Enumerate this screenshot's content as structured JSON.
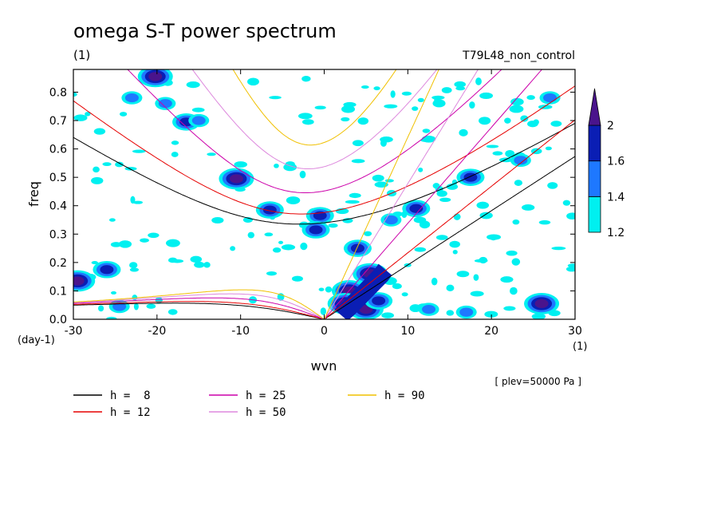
{
  "chart_data": {
    "type": "heatmap",
    "title": "omega S-T power spectrum",
    "subtitle_left": "(1)",
    "subtitle_right": "T79L48_non_control",
    "xlabel": "wvn",
    "ylabel": "freq",
    "x_unit": "(1)",
    "y_unit": "(day-1)",
    "plev_note": "[ plev=50000 Pa ]",
    "xlim": [
      -30,
      30
    ],
    "ylim": [
      0.0,
      0.88
    ],
    "xticks": [
      -30,
      -20,
      -10,
      0,
      10,
      20,
      30
    ],
    "yticks": [
      0.0,
      0.1,
      0.2,
      0.3,
      0.4,
      0.5,
      0.6,
      0.7,
      0.8
    ],
    "colorbar": {
      "levels": [
        1.2,
        1.4,
        1.6,
        2
      ],
      "colors": [
        "#00f0f0",
        "#1e78ff",
        "#0a1eb4",
        "#4a148c"
      ],
      "has_extend_arrow": true
    },
    "dispersion_curves": [
      {
        "label": "h =  8",
        "h": 8,
        "color": "#000000"
      },
      {
        "label": "h = 12",
        "h": 12,
        "color": "#e60000"
      },
      {
        "label": "h = 25",
        "h": 25,
        "color": "#cc00aa"
      },
      {
        "label": "h = 50",
        "h": 50,
        "color": "#dd88dd"
      },
      {
        "label": "h = 90",
        "h": 90,
        "color": "#f0c000"
      }
    ],
    "power_blobs": [
      {
        "x": -20.2,
        "y": 0.855,
        "level": 3
      },
      {
        "x": -16.5,
        "y": 0.695,
        "level": 2
      },
      {
        "x": -15.0,
        "y": 0.7,
        "level": 1
      },
      {
        "x": -23.0,
        "y": 0.78,
        "level": 1
      },
      {
        "x": -19.0,
        "y": 0.76,
        "level": 1
      },
      {
        "x": -10.5,
        "y": 0.495,
        "level": 3
      },
      {
        "x": -26.0,
        "y": 0.175,
        "level": 2
      },
      {
        "x": -29.5,
        "y": 0.135,
        "level": 3
      },
      {
        "x": -0.5,
        "y": 0.365,
        "level": 2
      },
      {
        "x": -1.0,
        "y": 0.315,
        "level": 2
      },
      {
        "x": -6.5,
        "y": 0.385,
        "level": 2
      },
      {
        "x": 11.0,
        "y": 0.39,
        "level": 2
      },
      {
        "x": 8.0,
        "y": 0.35,
        "level": 1
      },
      {
        "x": 5.5,
        "y": 0.16,
        "level": 3
      },
      {
        "x": 4.0,
        "y": 0.25,
        "level": 2
      },
      {
        "x": 3.0,
        "y": 0.1,
        "level": 3
      },
      {
        "x": 2.5,
        "y": 0.055,
        "level": 3
      },
      {
        "x": 5.0,
        "y": 0.035,
        "level": 3
      },
      {
        "x": 6.5,
        "y": 0.065,
        "level": 2
      },
      {
        "x": 17.5,
        "y": 0.5,
        "level": 2
      },
      {
        "x": 26.0,
        "y": 0.055,
        "level": 3
      },
      {
        "x": -24.5,
        "y": 0.045,
        "level": 1
      },
      {
        "x": 17.0,
        "y": 0.025,
        "level": 1
      },
      {
        "x": 12.5,
        "y": 0.035,
        "level": 1
      },
      {
        "x": 23.5,
        "y": 0.56,
        "level": 1
      },
      {
        "x": 27.0,
        "y": 0.78,
        "level": 1
      }
    ],
    "legend_placement": "bottom-left, 3 columns"
  }
}
